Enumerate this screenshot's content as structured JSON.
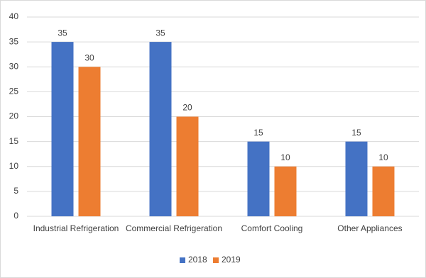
{
  "chart_data": {
    "type": "bar",
    "categories": [
      "Industrial Refrigeration",
      "Commercial Refrigeration",
      "Comfort Cooling",
      "Other Appliances"
    ],
    "series": [
      {
        "name": "2018",
        "color": "#4472c4",
        "values": [
          35,
          35,
          15,
          15
        ]
      },
      {
        "name": "2019",
        "color": "#ed7d31",
        "values": [
          30,
          20,
          10,
          10
        ]
      }
    ],
    "ylim": [
      0,
      40
    ],
    "yticks": [
      0,
      5,
      10,
      15,
      20,
      25,
      30,
      35,
      40
    ],
    "grid": true,
    "legend": "bottom"
  }
}
